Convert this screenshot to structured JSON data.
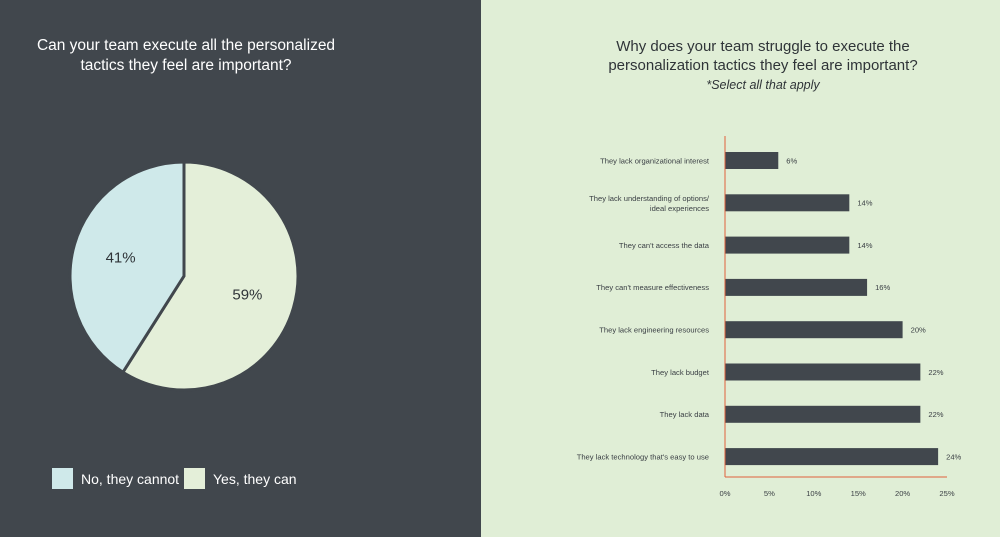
{
  "left": {
    "title_line1": "Can your team execute all the personalized",
    "title_line2": "tactics they feel are important?"
  },
  "right": {
    "title_line1": "Why does your team struggle to execute the",
    "title_line2": "personalization tactics they feel are important?",
    "subtitle": "*Select all that apply"
  },
  "colors": {
    "left_bg": "#41474d",
    "right_bg": "#e0eed6",
    "pie_no": "#cfe9ea",
    "pie_yes": "#e4efd9",
    "bar": "#41474d",
    "axis": "#e0603c"
  },
  "chart_data": [
    {
      "type": "pie",
      "title": "Can your team execute all the personalized tactics they feel are important?",
      "slices": [
        {
          "label": "No, they cannot",
          "value": 41,
          "display": "41%",
          "color": "#cfe9ea"
        },
        {
          "label": "Yes, they can",
          "value": 59,
          "display": "59%",
          "color": "#e4efd9"
        }
      ],
      "legend": "bottom"
    },
    {
      "type": "bar",
      "orientation": "horizontal",
      "title": "Why does your team struggle to execute the personalization tactics they feel are important?",
      "subtitle": "*Select all that apply",
      "categories": [
        [
          "They lack organizational interest"
        ],
        [
          "They lack understanding of options/",
          "ideal experiences"
        ],
        [
          "They can't access the data"
        ],
        [
          "They can't measure effectiveness"
        ],
        [
          "They lack engineering resources"
        ],
        [
          "They lack budget"
        ],
        [
          "They lack data"
        ],
        [
          "They lack technology that's easy to use"
        ]
      ],
      "values": [
        6,
        14,
        14,
        16,
        20,
        22,
        22,
        24
      ],
      "value_labels": [
        "6%",
        "14%",
        "14%",
        "16%",
        "20%",
        "22%",
        "22%",
        "24%"
      ],
      "xlim": [
        0,
        25
      ],
      "xticks": [
        0,
        5,
        10,
        15,
        20,
        25
      ],
      "xtick_labels": [
        "0%",
        "5%",
        "10%",
        "15%",
        "20%",
        "25%"
      ]
    }
  ]
}
